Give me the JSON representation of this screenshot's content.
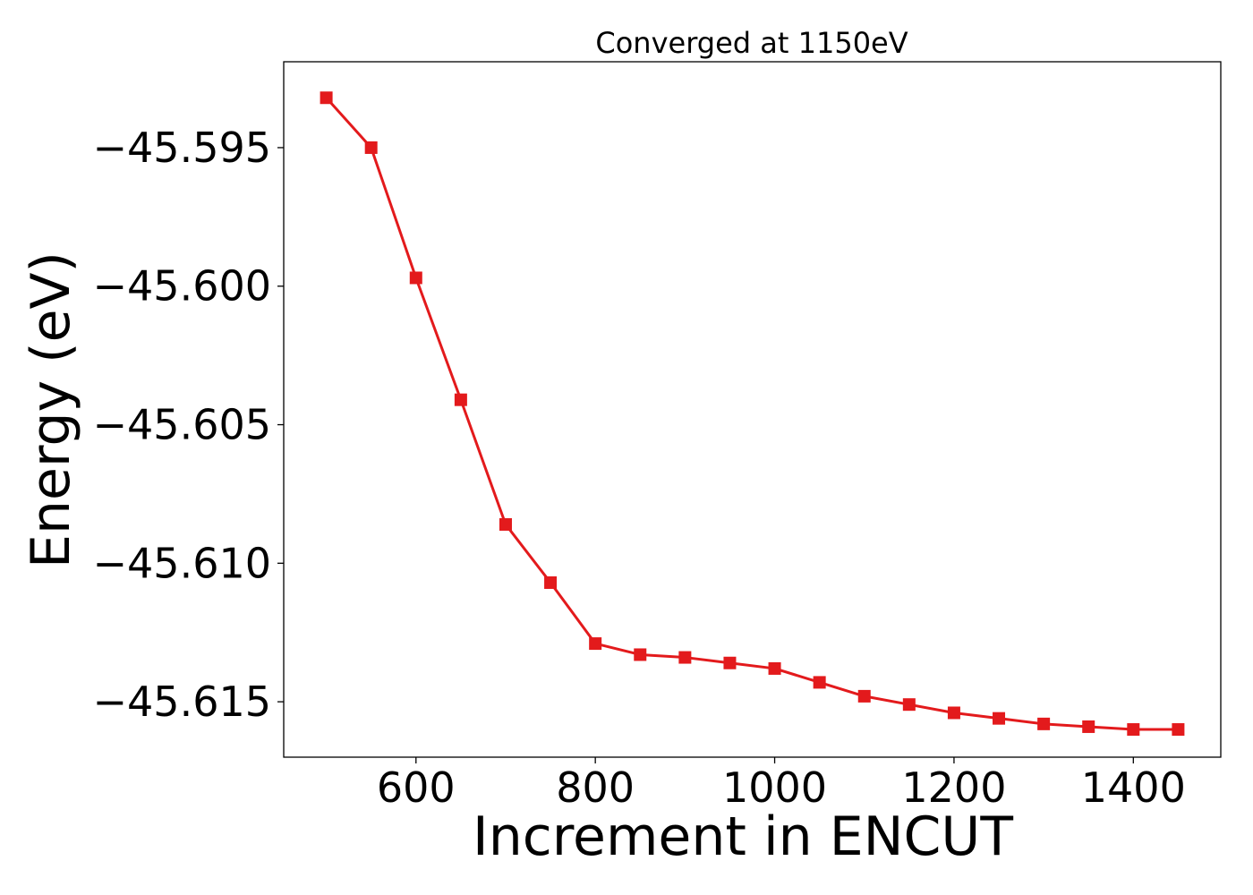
{
  "chart_data": {
    "type": "line",
    "title": "Converged at 1150eV",
    "xlabel": "Increment in ENCUT",
    "ylabel": "Energy (eV)",
    "xlim": [
      452.5,
      1497.5
    ],
    "ylim": [
      -45.617,
      -45.5919
    ],
    "x_ticks": [
      600,
      800,
      1000,
      1200,
      1400
    ],
    "x_tick_labels": [
      "600",
      "800",
      "1000",
      "1200",
      "1400"
    ],
    "y_ticks": [
      -45.595,
      -45.6,
      -45.605,
      -45.61,
      -45.615
    ],
    "y_tick_labels": [
      "−45.595",
      "−45.600",
      "−45.605",
      "−45.610",
      "−45.615"
    ],
    "grid": false,
    "series": [
      {
        "color": "#e31a1c",
        "marker": "square",
        "x": [
          500,
          550,
          600,
          650,
          700,
          750,
          800,
          850,
          900,
          950,
          1000,
          1050,
          1100,
          1150,
          1200,
          1250,
          1300,
          1350,
          1400,
          1450
        ],
        "values": [
          -45.5932,
          -45.595,
          -45.5997,
          -45.6041,
          -45.6086,
          -45.6107,
          -45.6129,
          -45.6133,
          -45.6134,
          -45.6136,
          -45.6138,
          -45.6143,
          -45.6148,
          -45.6151,
          -45.6154,
          -45.6156,
          -45.6158,
          -45.6159,
          -45.616,
          -45.616
        ]
      }
    ]
  }
}
